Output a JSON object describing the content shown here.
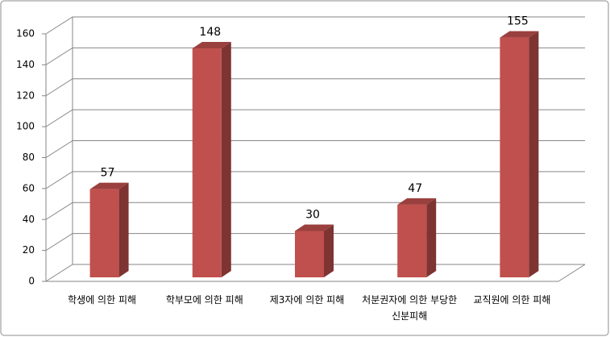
{
  "chart_data": {
    "type": "bar3d",
    "categories": [
      "학생에 의한 피해",
      "학부모에 의한 피해",
      "제3자에 의한 피해",
      "처분권자에 의한 부당한 신분피해",
      "교직원에 의한 피해"
    ],
    "values": [
      57,
      148,
      30,
      47,
      155
    ],
    "color": "#c0504d",
    "ylim": [
      0,
      160
    ],
    "yticks": [
      0,
      20,
      40,
      60,
      80,
      100,
      120,
      140,
      160
    ],
    "grid": true
  }
}
